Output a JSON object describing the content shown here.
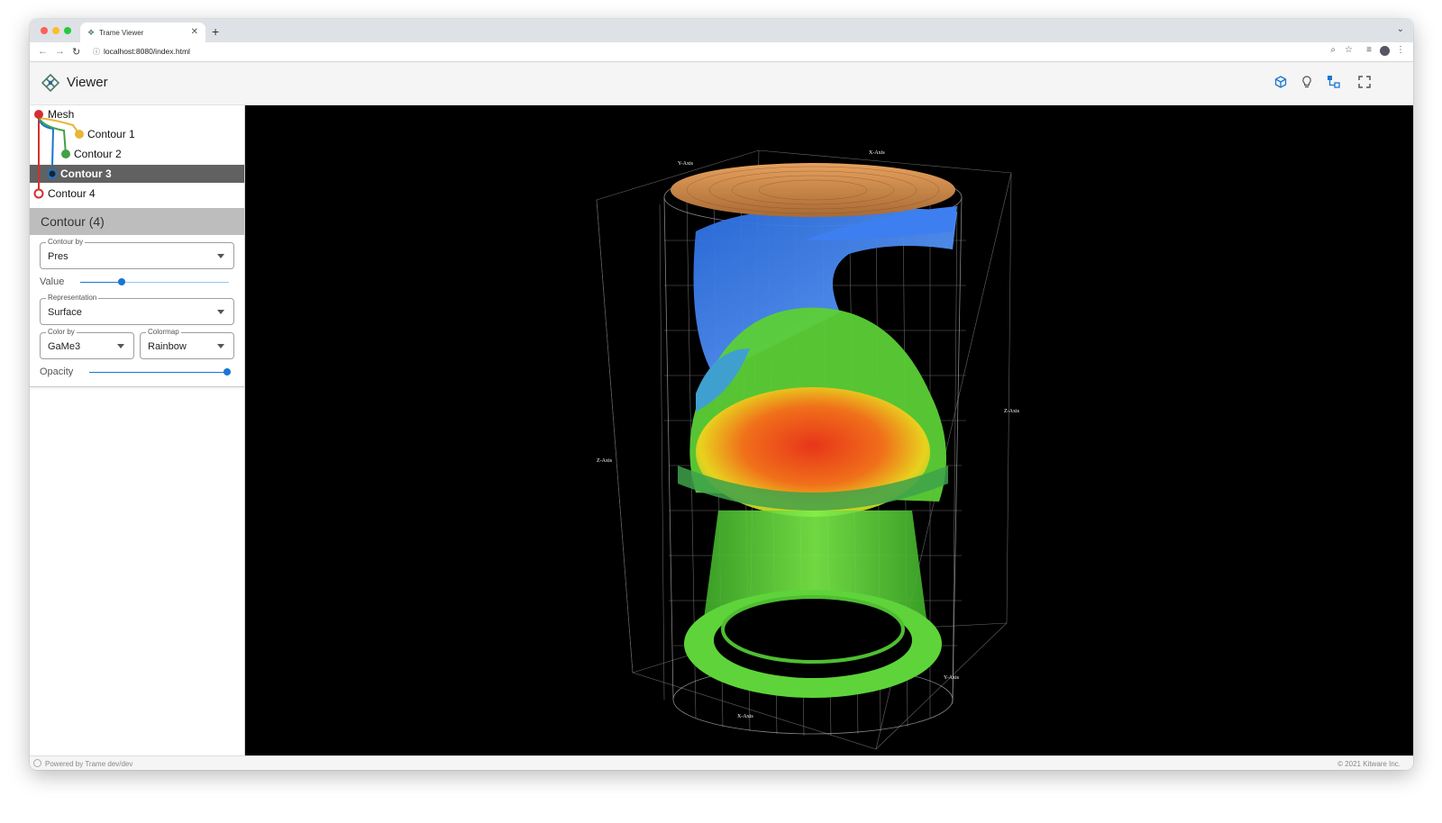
{
  "browser": {
    "tab_title": "Trame Viewer",
    "url": "localhost:8080/index.html"
  },
  "app": {
    "title": "Viewer",
    "toolbar_icons": [
      "cube-icon",
      "lightbulb-icon",
      "pipeline-icon",
      "fullscreen-icon"
    ]
  },
  "pipeline": {
    "items": [
      {
        "label": "Mesh",
        "color": "#d32f2f"
      },
      {
        "label": "Contour 1",
        "color": "#e8b63a"
      },
      {
        "label": "Contour 2",
        "color": "#43a047"
      },
      {
        "label": "Contour 3",
        "color": "#1976d2",
        "active": true
      },
      {
        "label": "Contour 4",
        "color": "#d32f2f"
      }
    ]
  },
  "panel": {
    "title": "Contour (4)",
    "contour_by": {
      "label": "Contour by",
      "value": "Pres"
    },
    "value_slider": {
      "label": "Value",
      "fraction": 0.27
    },
    "representation": {
      "label": "Representation",
      "value": "Surface"
    },
    "color_by": {
      "label": "Color by",
      "value": "GaMe3"
    },
    "colormap": {
      "label": "Colormap",
      "value": "Rainbow"
    },
    "opacity_slider": {
      "label": "Opacity",
      "fraction": 1.0
    }
  },
  "viewport": {
    "axis_titles": {
      "x": "X-Axis",
      "y": "Y-Axis",
      "z": "Z-Axis"
    }
  },
  "footer": {
    "left": "Powered by Trame dev/dev",
    "right": "© 2021 Kitware Inc."
  }
}
